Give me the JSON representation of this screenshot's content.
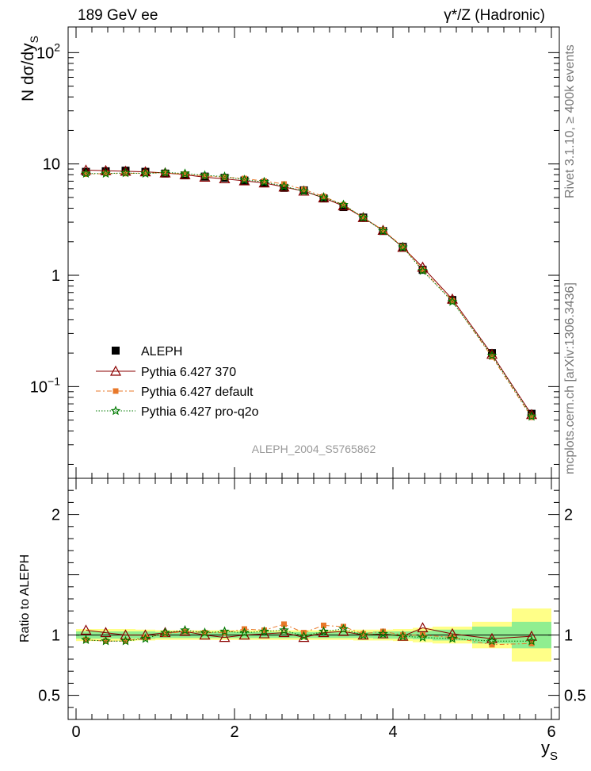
{
  "header": {
    "left": "189 GeV ee",
    "right": "γ*/Z (Hadronic)"
  },
  "side": {
    "rivet": "Rivet 3.1.10, ≥ 400k events",
    "mcplots": "mcplots.cern.ch [arXiv:1306.3436]"
  },
  "watermark": "ALEPH_2004_S5765862",
  "chart_data": [
    {
      "type": "scatter",
      "panel": "main",
      "yscale": "log",
      "ylabel": "N dσ/dy_S",
      "ylim": [
        0.015,
        170
      ],
      "xlim": [
        -0.1,
        6.1
      ],
      "y_ticks": [
        {
          "value": 100,
          "label": "10",
          "sup": "2"
        },
        {
          "value": 10,
          "label": "10",
          "sup": ""
        },
        {
          "value": 1,
          "label": "1",
          "sup": ""
        },
        {
          "value": 0.1,
          "label": "10",
          "sup": "−1"
        }
      ],
      "x": [
        0.125,
        0.375,
        0.625,
        0.875,
        1.125,
        1.375,
        1.625,
        1.875,
        2.125,
        2.375,
        2.625,
        2.875,
        3.125,
        3.375,
        3.625,
        3.875,
        4.125,
        4.375,
        4.75,
        5.25,
        5.75
      ],
      "series": [
        {
          "name": "ALEPH",
          "marker": "square",
          "color": "#000000",
          "values": [
            8.5,
            8.6,
            8.7,
            8.5,
            8.2,
            7.9,
            7.7,
            7.5,
            7.1,
            6.7,
            6.1,
            5.8,
            4.9,
            4.1,
            3.3,
            2.5,
            1.8,
            1.12,
            0.6,
            0.2,
            0.057
          ]
        },
        {
          "name": "Pythia 6.427 370",
          "marker": "triangle",
          "color": "#8b0000",
          "values": [
            8.8,
            8.7,
            8.6,
            8.5,
            8.3,
            8.0,
            7.6,
            7.35,
            7.05,
            6.75,
            6.2,
            5.7,
            4.95,
            4.2,
            3.3,
            2.53,
            1.78,
            1.18,
            0.61,
            0.195,
            0.056
          ]
        },
        {
          "name": "Pythia 6.427 default",
          "marker": "square-small",
          "color": "#e8782a",
          "values": [
            8.1,
            8.2,
            8.2,
            8.3,
            8.3,
            8.1,
            7.8,
            7.6,
            7.4,
            7.0,
            6.6,
            5.9,
            5.1,
            4.3,
            3.3,
            2.55,
            1.8,
            1.12,
            0.59,
            0.185,
            0.053
          ]
        },
        {
          "name": "Pythia 6.427 pro-q2o",
          "marker": "star",
          "color": "#007a00",
          "values": [
            8.2,
            8.2,
            8.3,
            8.2,
            8.4,
            8.2,
            7.9,
            7.7,
            7.2,
            6.9,
            6.3,
            5.7,
            5.0,
            4.3,
            3.3,
            2.5,
            1.78,
            1.1,
            0.58,
            0.19,
            0.054
          ]
        }
      ]
    },
    {
      "type": "line",
      "panel": "ratio",
      "ylabel": "Ratio to ALEPH",
      "xlabel": "y_S",
      "ylim": [
        0.3,
        2.3
      ],
      "xlim": [
        -0.1,
        6.1
      ],
      "y_ticks": [
        {
          "value": 0.5,
          "label": "0.5"
        },
        {
          "value": 1,
          "label": "1"
        },
        {
          "value": 2,
          "label": "2"
        }
      ],
      "x_ticks": [
        {
          "value": 0,
          "label": "0"
        },
        {
          "value": 2,
          "label": "2"
        },
        {
          "value": 4,
          "label": "4"
        },
        {
          "value": 6,
          "label": "6"
        }
      ],
      "x": [
        0.125,
        0.375,
        0.625,
        0.875,
        1.125,
        1.375,
        1.625,
        1.875,
        2.125,
        2.375,
        2.625,
        2.875,
        3.125,
        3.375,
        3.625,
        3.875,
        4.125,
        4.375,
        4.75,
        5.25,
        5.75
      ],
      "bins": [
        {
          "lo": 0.0,
          "hi": 0.25,
          "stat": 0.03,
          "tot": 0.05
        },
        {
          "lo": 0.25,
          "hi": 0.5,
          "stat": 0.03,
          "tot": 0.05
        },
        {
          "lo": 0.5,
          "hi": 0.75,
          "stat": 0.03,
          "tot": 0.05
        },
        {
          "lo": 0.75,
          "hi": 1.0,
          "stat": 0.03,
          "tot": 0.045
        },
        {
          "lo": 1.0,
          "hi": 1.25,
          "stat": 0.025,
          "tot": 0.04
        },
        {
          "lo": 1.25,
          "hi": 1.5,
          "stat": 0.025,
          "tot": 0.04
        },
        {
          "lo": 1.5,
          "hi": 1.75,
          "stat": 0.025,
          "tot": 0.04
        },
        {
          "lo": 1.75,
          "hi": 2.0,
          "stat": 0.025,
          "tot": 0.04
        },
        {
          "lo": 2.0,
          "hi": 2.25,
          "stat": 0.025,
          "tot": 0.04
        },
        {
          "lo": 2.25,
          "hi": 2.5,
          "stat": 0.025,
          "tot": 0.04
        },
        {
          "lo": 2.5,
          "hi": 2.75,
          "stat": 0.025,
          "tot": 0.04
        },
        {
          "lo": 2.75,
          "hi": 3.0,
          "stat": 0.025,
          "tot": 0.04
        },
        {
          "lo": 3.0,
          "hi": 3.25,
          "stat": 0.025,
          "tot": 0.04
        },
        {
          "lo": 3.25,
          "hi": 3.5,
          "stat": 0.025,
          "tot": 0.04
        },
        {
          "lo": 3.5,
          "hi": 3.75,
          "stat": 0.025,
          "tot": 0.045
        },
        {
          "lo": 3.75,
          "hi": 4.0,
          "stat": 0.03,
          "tot": 0.045
        },
        {
          "lo": 4.0,
          "hi": 4.25,
          "stat": 0.03,
          "tot": 0.05
        },
        {
          "lo": 4.25,
          "hi": 4.5,
          "stat": 0.035,
          "tot": 0.06
        },
        {
          "lo": 4.5,
          "hi": 5.0,
          "stat": 0.045,
          "tot": 0.07
        },
        {
          "lo": 5.0,
          "hi": 5.5,
          "stat": 0.07,
          "tot": 0.11
        },
        {
          "lo": 5.5,
          "hi": 6.0,
          "stat": 0.11,
          "tot": 0.22
        }
      ],
      "band_colors": {
        "stat": "#90ee90",
        "tot": "#ffff88"
      },
      "series": [
        {
          "name": "Pythia 6.427 370",
          "marker": "triangle",
          "color": "#8b0000",
          "values": [
            1.04,
            1.02,
            1.0,
            1.0,
            1.02,
            1.03,
            1.0,
            0.98,
            1.0,
            1.01,
            1.02,
            0.98,
            1.02,
            1.03,
            1.0,
            1.01,
            0.99,
            1.06,
            1.01,
            0.97,
            0.99
          ]
        },
        {
          "name": "Pythia 6.427 default",
          "marker": "square-small",
          "color": "#e8782a",
          "values": [
            0.96,
            0.95,
            0.95,
            0.98,
            1.01,
            1.03,
            1.02,
            1.02,
            1.05,
            1.04,
            1.09,
            1.02,
            1.08,
            1.07,
            1.01,
            1.03,
            1.0,
            1.0,
            0.98,
            0.92,
            0.93
          ]
        },
        {
          "name": "Pythia 6.427 pro-q2o",
          "marker": "star",
          "color": "#007a00",
          "values": [
            0.96,
            0.95,
            0.95,
            0.97,
            1.02,
            1.04,
            1.02,
            1.03,
            1.02,
            1.03,
            1.04,
            0.99,
            1.03,
            1.05,
            1.0,
            1.01,
            0.99,
            0.98,
            0.97,
            0.95,
            0.95
          ]
        }
      ]
    }
  ]
}
